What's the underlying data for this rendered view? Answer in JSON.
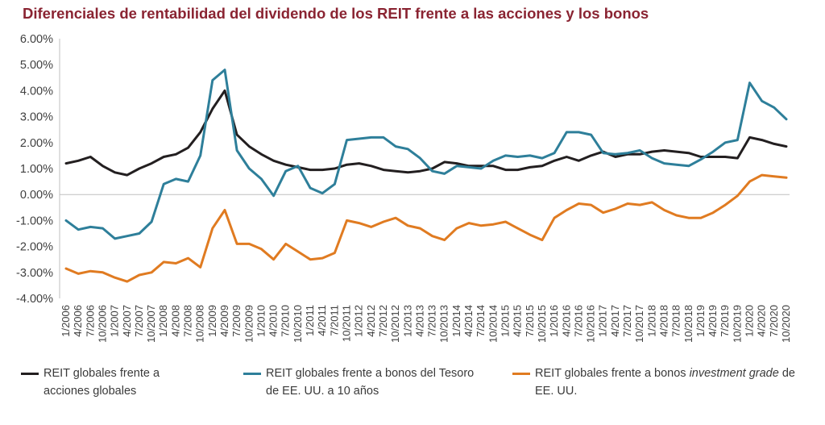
{
  "title": "Diferenciales de rentabilidad del dividendo de los REIT frente a las acciones y los bonos",
  "legend": {
    "items": [
      {
        "label": "REIT globales frente a acciones globales"
      },
      {
        "label": "REIT globales frente a bonos del Tesoro de EE. UU. a 10 años"
      },
      {
        "label_pre": "REIT globales frente a bonos ",
        "label_italic": "investment grade",
        "label_post": " de EE. UU."
      }
    ]
  },
  "chart_data": {
    "type": "line",
    "title": "Diferenciales de rentabilidad del dividendo de los REIT frente a las acciones y los bonos",
    "xlabel": "",
    "ylabel": "",
    "ylim": [
      -4.0,
      6.0
    ],
    "y_ticks": [
      "6.00%",
      "5.00%",
      "4.00%",
      "3.00%",
      "2.00%",
      "1.00%",
      "0.00%",
      "-1.00%",
      "-2.00%",
      "-3.00%",
      "-4.00%"
    ],
    "y_tick_values": [
      6,
      5,
      4,
      3,
      2,
      1,
      0,
      -1,
      -2,
      -3,
      -4
    ],
    "x_tick_labels": [
      "1/2006",
      "4/2006",
      "7/2006",
      "10/2006",
      "1/2007",
      "4/2007",
      "7/2007",
      "10/2007",
      "1/2008",
      "4/2008",
      "7/2008",
      "10/2008",
      "1/2009",
      "4/2009",
      "7/2009",
      "10/2009",
      "1/2010",
      "4/2010",
      "7/2010",
      "10/2010",
      "1/2011",
      "4/2011",
      "7/2011",
      "10/2011",
      "1/2012",
      "4/2012",
      "7/2012",
      "10/2012",
      "1/2013",
      "4/2013",
      "7/2013",
      "10/2013",
      "1/2014",
      "4/2014",
      "7/2014",
      "10/2014",
      "1/2015",
      "4/2015",
      "7/2015",
      "10/2015",
      "1/2016",
      "4/2016",
      "7/2016",
      "10/2016",
      "1/2017",
      "4/2017",
      "7/2017",
      "10/2017",
      "1/2018",
      "4/2018",
      "7/2018",
      "10/2018",
      "1/2019",
      "4/2019",
      "7/2019",
      "10/2019",
      "1/2020",
      "4/2020",
      "7/2020",
      "10/2020"
    ],
    "grid": false,
    "legend_position": "bottom",
    "series": [
      {
        "name": "REIT globales frente a acciones globales",
        "color": "#231f20",
        "points": [
          [
            "1/2006",
            1.2
          ],
          [
            "4/2006",
            1.3
          ],
          [
            "7/2006",
            1.45
          ],
          [
            "10/2006",
            1.1
          ],
          [
            "1/2007",
            0.85
          ],
          [
            "4/2007",
            0.75
          ],
          [
            "7/2007",
            1.0
          ],
          [
            "10/2007",
            1.2
          ],
          [
            "1/2008",
            1.45
          ],
          [
            "4/2008",
            1.55
          ],
          [
            "7/2008",
            1.8
          ],
          [
            "10/2008",
            2.4
          ],
          [
            "1/2009",
            3.3
          ],
          [
            "4/2009",
            4.0
          ],
          [
            "7/2009",
            2.3
          ],
          [
            "10/2009",
            1.85
          ],
          [
            "1/2010",
            1.55
          ],
          [
            "4/2010",
            1.3
          ],
          [
            "7/2010",
            1.15
          ],
          [
            "10/2010",
            1.05
          ],
          [
            "1/2011",
            0.95
          ],
          [
            "4/2011",
            0.95
          ],
          [
            "7/2011",
            1.0
          ],
          [
            "10/2011",
            1.15
          ],
          [
            "1/2012",
            1.2
          ],
          [
            "4/2012",
            1.1
          ],
          [
            "7/2012",
            0.95
          ],
          [
            "10/2012",
            0.9
          ],
          [
            "1/2013",
            0.85
          ],
          [
            "4/2013",
            0.9
          ],
          [
            "7/2013",
            1.0
          ],
          [
            "10/2013",
            1.25
          ],
          [
            "1/2014",
            1.2
          ],
          [
            "4/2014",
            1.1
          ],
          [
            "7/2014",
            1.1
          ],
          [
            "10/2014",
            1.1
          ],
          [
            "1/2015",
            0.95
          ],
          [
            "4/2015",
            0.95
          ],
          [
            "7/2015",
            1.05
          ],
          [
            "10/2015",
            1.1
          ],
          [
            "1/2016",
            1.3
          ],
          [
            "4/2016",
            1.45
          ],
          [
            "7/2016",
            1.3
          ],
          [
            "10/2016",
            1.5
          ],
          [
            "1/2017",
            1.65
          ],
          [
            "4/2017",
            1.45
          ],
          [
            "7/2017",
            1.55
          ],
          [
            "10/2017",
            1.55
          ],
          [
            "1/2018",
            1.65
          ],
          [
            "4/2018",
            1.7
          ],
          [
            "7/2018",
            1.65
          ],
          [
            "10/2018",
            1.6
          ],
          [
            "1/2019",
            1.45
          ],
          [
            "4/2019",
            1.45
          ],
          [
            "7/2019",
            1.45
          ],
          [
            "10/2019",
            1.4
          ],
          [
            "1/2020",
            2.2
          ],
          [
            "4/2020",
            2.1
          ],
          [
            "7/2020",
            1.95
          ],
          [
            "10/2020",
            1.85
          ]
        ]
      },
      {
        "name": "REIT globales frente a bonos del Tesoro de EE. UU. a 10 años",
        "color": "#2e7f9a",
        "points": [
          [
            "1/2006",
            -1.0
          ],
          [
            "4/2006",
            -1.35
          ],
          [
            "7/2006",
            -1.25
          ],
          [
            "10/2006",
            -1.3
          ],
          [
            "1/2007",
            -1.7
          ],
          [
            "4/2007",
            -1.6
          ],
          [
            "7/2007",
            -1.5
          ],
          [
            "10/2007",
            -1.05
          ],
          [
            "1/2008",
            0.4
          ],
          [
            "4/2008",
            0.6
          ],
          [
            "7/2008",
            0.5
          ],
          [
            "10/2008",
            1.5
          ],
          [
            "1/2009",
            4.4
          ],
          [
            "4/2009",
            4.8
          ],
          [
            "7/2009",
            1.7
          ],
          [
            "10/2009",
            1.0
          ],
          [
            "1/2010",
            0.6
          ],
          [
            "4/2010",
            -0.05
          ],
          [
            "7/2010",
            0.9
          ],
          [
            "10/2010",
            1.1
          ],
          [
            "1/2011",
            0.25
          ],
          [
            "4/2011",
            0.05
          ],
          [
            "7/2011",
            0.4
          ],
          [
            "10/2011",
            2.1
          ],
          [
            "1/2012",
            2.15
          ],
          [
            "4/2012",
            2.2
          ],
          [
            "7/2012",
            2.2
          ],
          [
            "10/2012",
            1.85
          ],
          [
            "1/2013",
            1.75
          ],
          [
            "4/2013",
            1.4
          ],
          [
            "7/2013",
            0.9
          ],
          [
            "10/2013",
            0.8
          ],
          [
            "1/2014",
            1.1
          ],
          [
            "4/2014",
            1.05
          ],
          [
            "7/2014",
            1.0
          ],
          [
            "10/2014",
            1.3
          ],
          [
            "1/2015",
            1.5
          ],
          [
            "4/2015",
            1.45
          ],
          [
            "7/2015",
            1.5
          ],
          [
            "10/2015",
            1.4
          ],
          [
            "1/2016",
            1.6
          ],
          [
            "4/2016",
            2.4
          ],
          [
            "7/2016",
            2.4
          ],
          [
            "10/2016",
            2.3
          ],
          [
            "1/2017",
            1.6
          ],
          [
            "4/2017",
            1.55
          ],
          [
            "7/2017",
            1.6
          ],
          [
            "10/2017",
            1.7
          ],
          [
            "1/2018",
            1.4
          ],
          [
            "4/2018",
            1.2
          ],
          [
            "7/2018",
            1.15
          ],
          [
            "10/2018",
            1.1
          ],
          [
            "1/2019",
            1.35
          ],
          [
            "4/2019",
            1.65
          ],
          [
            "7/2019",
            2.0
          ],
          [
            "10/2019",
            2.1
          ],
          [
            "1/2020",
            4.3
          ],
          [
            "4/2020",
            3.6
          ],
          [
            "7/2020",
            3.35
          ],
          [
            "10/2020",
            2.9
          ]
        ]
      },
      {
        "name": "REIT globales frente a bonos investment grade de EE. UU.",
        "color": "#e07b21",
        "points": [
          [
            "1/2006",
            -2.85
          ],
          [
            "4/2006",
            -3.05
          ],
          [
            "7/2006",
            -2.95
          ],
          [
            "10/2006",
            -3.0
          ],
          [
            "1/2007",
            -3.2
          ],
          [
            "4/2007",
            -3.35
          ],
          [
            "7/2007",
            -3.1
          ],
          [
            "10/2007",
            -3.0
          ],
          [
            "1/2008",
            -2.6
          ],
          [
            "4/2008",
            -2.65
          ],
          [
            "7/2008",
            -2.45
          ],
          [
            "10/2008",
            -2.8
          ],
          [
            "1/2009",
            -1.3
          ],
          [
            "4/2009",
            -0.6
          ],
          [
            "7/2009",
            -1.9
          ],
          [
            "10/2009",
            -1.9
          ],
          [
            "1/2010",
            -2.1
          ],
          [
            "4/2010",
            -2.5
          ],
          [
            "7/2010",
            -1.9
          ],
          [
            "10/2010",
            -2.2
          ],
          [
            "1/2011",
            -2.5
          ],
          [
            "4/2011",
            -2.45
          ],
          [
            "7/2011",
            -2.25
          ],
          [
            "10/2011",
            -1.0
          ],
          [
            "1/2012",
            -1.1
          ],
          [
            "4/2012",
            -1.25
          ],
          [
            "7/2012",
            -1.05
          ],
          [
            "10/2012",
            -0.9
          ],
          [
            "1/2013",
            -1.2
          ],
          [
            "4/2013",
            -1.3
          ],
          [
            "7/2013",
            -1.6
          ],
          [
            "10/2013",
            -1.75
          ],
          [
            "1/2014",
            -1.3
          ],
          [
            "4/2014",
            -1.1
          ],
          [
            "7/2014",
            -1.2
          ],
          [
            "10/2014",
            -1.15
          ],
          [
            "1/2015",
            -1.05
          ],
          [
            "4/2015",
            -1.3
          ],
          [
            "7/2015",
            -1.55
          ],
          [
            "10/2015",
            -1.75
          ],
          [
            "1/2016",
            -0.9
          ],
          [
            "4/2016",
            -0.6
          ],
          [
            "7/2016",
            -0.35
          ],
          [
            "10/2016",
            -0.4
          ],
          [
            "1/2017",
            -0.7
          ],
          [
            "4/2017",
            -0.55
          ],
          [
            "7/2017",
            -0.35
          ],
          [
            "10/2017",
            -0.4
          ],
          [
            "1/2018",
            -0.3
          ],
          [
            "4/2018",
            -0.6
          ],
          [
            "7/2018",
            -0.8
          ],
          [
            "10/2018",
            -0.9
          ],
          [
            "1/2019",
            -0.9
          ],
          [
            "4/2019",
            -0.7
          ],
          [
            "7/2019",
            -0.4
          ],
          [
            "10/2019",
            -0.05
          ],
          [
            "1/2020",
            0.5
          ],
          [
            "4/2020",
            0.75
          ],
          [
            "7/2020",
            0.7
          ],
          [
            "10/2020",
            0.65
          ]
        ]
      }
    ]
  }
}
